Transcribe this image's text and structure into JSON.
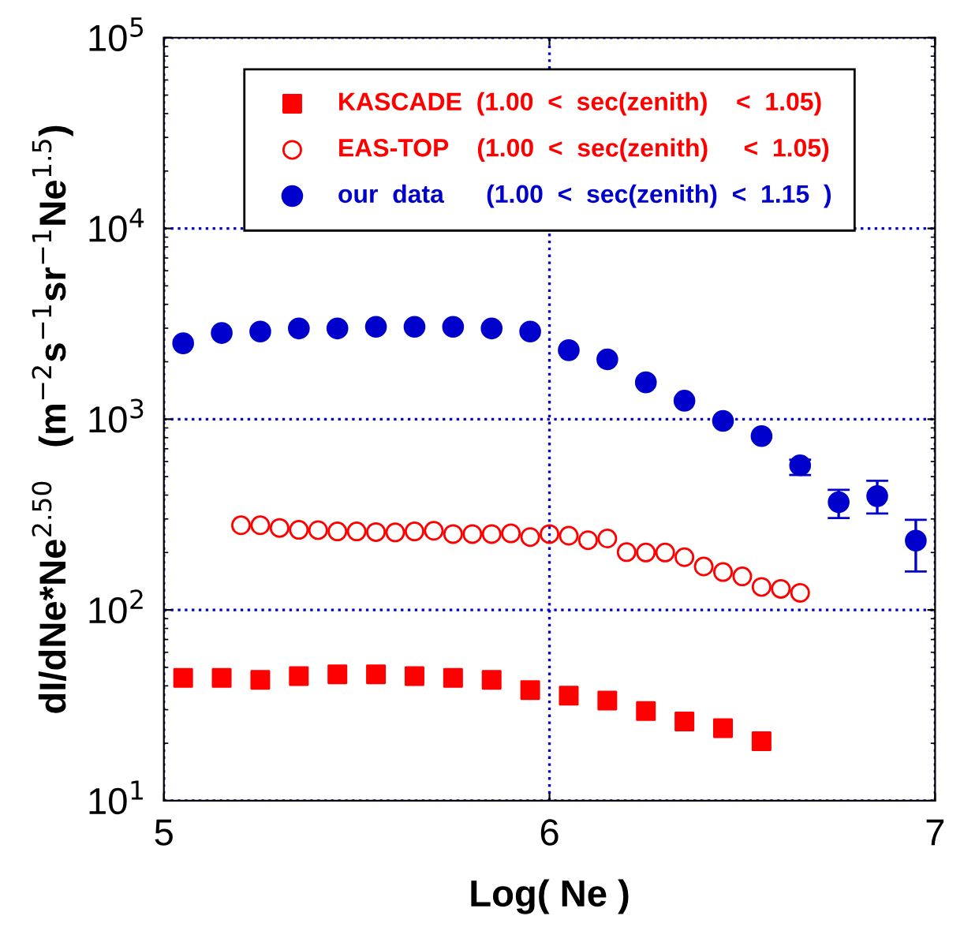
{
  "chart_data": {
    "type": "scatter",
    "xlabel": "Log( Ne )",
    "ylabel": "dI/dNe*Ne$^{2.50}$   (m$^{−2}$s$^{−1}$sr$^{−1}$Ne$^{1.5}$)",
    "log": "y",
    "grid": true,
    "legend": "top",
    "xlim": [
      5,
      7
    ],
    "xticks": [
      5,
      6,
      7
    ],
    "ylim": [
      10,
      100000
    ],
    "yticks": [
      {
        "value": 10,
        "label": "10$^{1}$"
      },
      {
        "value": 100,
        "label": "10$^{2}$"
      },
      {
        "value": 1000,
        "label": "10$^{3}$"
      },
      {
        "value": 10000,
        "label": "10$^{4}$"
      },
      {
        "value": 100000,
        "label": "10$^{5}$"
      }
    ],
    "series": [
      {
        "name": "KASCADE  (1.00  <  sec(zenith)    <  1.05)",
        "color": "#ff0000",
        "marker": "square",
        "x": [
          5.05,
          5.15,
          5.25,
          5.35,
          5.45,
          5.55,
          5.65,
          5.75,
          5.85,
          5.95,
          6.05,
          6.15,
          6.25,
          6.35,
          6.45,
          6.55
        ],
        "values": [
          44,
          44,
          43,
          45,
          46,
          46,
          45,
          44,
          43,
          38,
          35.5,
          33.5,
          29.5,
          26,
          24,
          20.5
        ]
      },
      {
        "name": "EAS-TOP    (1.00  <  sec(zenith)     <  1.05)",
        "color": "#ff0000",
        "marker": "open circle",
        "x": [
          5.2,
          5.25,
          5.3,
          5.35,
          5.4,
          5.45,
          5.5,
          5.55,
          5.6,
          5.65,
          5.7,
          5.75,
          5.8,
          5.85,
          5.9,
          5.95,
          6.0,
          6.05,
          6.1,
          6.15,
          6.2,
          6.25,
          6.3,
          6.35,
          6.4,
          6.45,
          6.5,
          6.55,
          6.6,
          6.65
        ],
        "values": [
          278,
          278,
          269,
          263,
          262,
          258,
          258,
          256,
          255,
          258,
          260,
          250,
          250,
          250,
          252,
          241,
          250,
          245,
          232,
          237,
          201,
          200,
          200,
          189,
          169,
          158,
          150,
          132,
          129,
          123
        ]
      },
      {
        "name": "our  data      (1.00  <  sec(zenith)  <  1.15  )",
        "color": "#0000cc",
        "marker": "circle",
        "x": [
          5.05,
          5.15,
          5.25,
          5.35,
          5.45,
          5.55,
          5.65,
          5.75,
          5.85,
          5.95,
          6.05,
          6.15,
          6.25,
          6.35,
          6.45,
          6.55,
          6.65,
          6.75,
          6.85,
          6.95
        ],
        "values": [
          2500,
          2830,
          2880,
          2990,
          2990,
          3050,
          3050,
          3050,
          2990,
          2880,
          2300,
          2060,
          1560,
          1250,
          980,
          815,
          573,
          367,
          395,
          231
        ],
        "errors": [
          null,
          null,
          null,
          null,
          null,
          null,
          null,
          null,
          null,
          null,
          null,
          null,
          null,
          null,
          null,
          null,
          [
            510,
            613
          ],
          [
            303,
            426
          ],
          [
            320,
            476
          ],
          [
            159,
            297
          ]
        ]
      }
    ]
  }
}
